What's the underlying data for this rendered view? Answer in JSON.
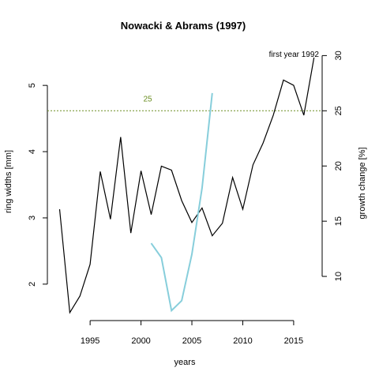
{
  "chart_data": {
    "type": "line",
    "title": "Nowacki & Abrams (1997)",
    "xlabel": "years",
    "ylabel_left": "ring widths [mm]",
    "ylabel_right": "growth change [%]",
    "annotation_text": "first year 1992",
    "threshold_value": 25,
    "threshold_label": "25",
    "x_ticks": [
      1995,
      2000,
      2005,
      2010,
      2015
    ],
    "y_left_ticks": [
      2,
      3,
      4,
      5
    ],
    "y_right_ticks": [
      10,
      15,
      20,
      25,
      30
    ],
    "xlim": [
      1990.8,
      2017.8
    ],
    "ylim_left": [
      1.45,
      5.55
    ],
    "ylim_right": [
      6.0,
      30.6
    ],
    "colors": {
      "ring": "#000000",
      "growth": "#87CEDB",
      "threshold": "#6B8E23"
    },
    "series": [
      {
        "axis": "left",
        "color": "#000000",
        "x": [
          1992,
          1993,
          1994,
          1995,
          1996,
          1997,
          1998,
          1999,
          2000,
          2001,
          2002,
          2003,
          2004,
          2005,
          2006,
          2007,
          2008,
          2009,
          2010,
          2011,
          2012,
          2013,
          2014,
          2015,
          2016,
          2017
        ],
        "y": [
          3.13,
          1.57,
          1.82,
          2.3,
          3.7,
          2.98,
          4.22,
          2.77,
          3.71,
          3.05,
          3.78,
          3.72,
          3.26,
          2.93,
          3.15,
          2.73,
          2.92,
          3.61,
          3.13,
          3.8,
          4.13,
          4.55,
          5.08,
          5.0,
          4.55,
          5.42
        ]
      },
      {
        "axis": "right",
        "color": "#87CEDB",
        "x": [
          2001,
          2002,
          2003,
          2004,
          2005,
          2006,
          2007
        ],
        "y": [
          13.0,
          11.7,
          6.9,
          7.8,
          12.0,
          18.0,
          26.6
        ]
      }
    ]
  }
}
